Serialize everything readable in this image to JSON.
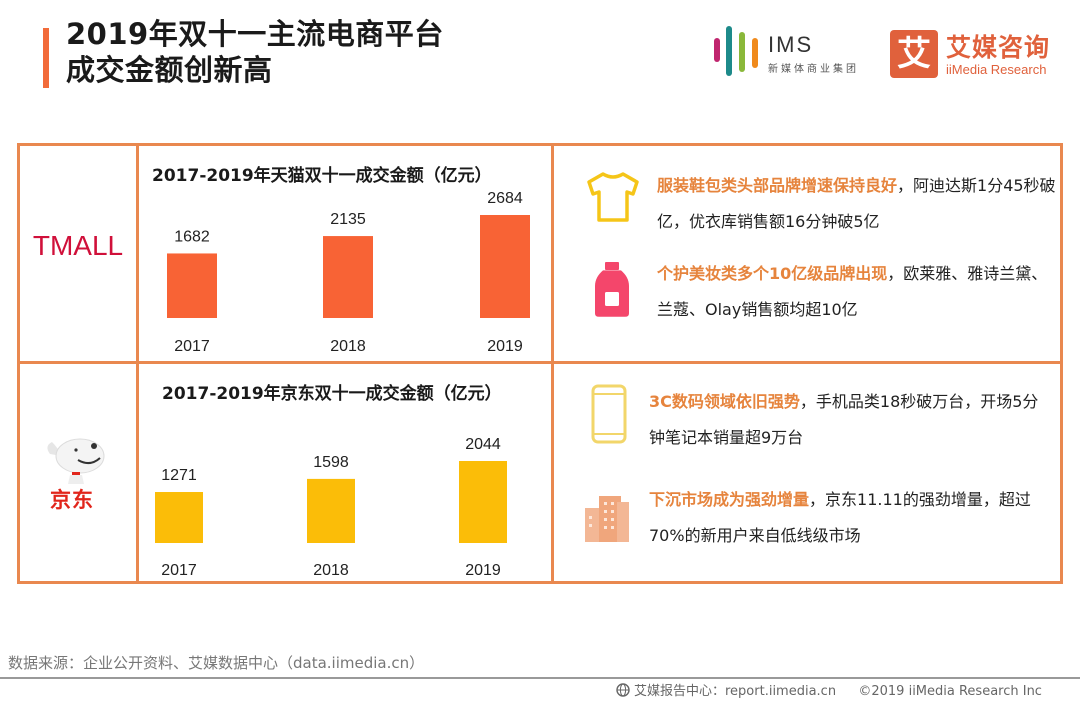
{
  "header": {
    "title_line1": "2019年双十一主流电商平台",
    "title_line2": "成交金额创新高",
    "accent_color": "#f26b3a"
  },
  "logos": {
    "ims": {
      "name": "IMS",
      "subtitle": "新媒体商业集团"
    },
    "iimedia": {
      "glyph": "艾",
      "name": "艾媒咨询",
      "english": "iiMedia Research",
      "color": "#e0613c"
    }
  },
  "brands": {
    "tmall": {
      "label": "TMALL",
      "color": "#d0103a"
    },
    "jd": {
      "label": "京东",
      "color": "#e1251b"
    }
  },
  "chart_data": [
    {
      "type": "bar",
      "title": "2017-2019年天猫双十一成交金额（亿元）",
      "categories": [
        "2017",
        "2018",
        "2019"
      ],
      "values": [
        1682,
        2135,
        2684
      ],
      "value_labels": [
        "1682",
        "2135",
        "2684"
      ],
      "unit": "亿元",
      "color": "#f86335",
      "xlabel": "",
      "ylabel": "",
      "grid": false,
      "axis_visible": false
    },
    {
      "type": "bar",
      "title": "2017-2019年京东双十一成交金额（亿元）",
      "categories": [
        "2017",
        "2018",
        "2019"
      ],
      "values": [
        1271,
        1598,
        2044
      ],
      "value_labels": [
        "1271",
        "1598",
        "2044"
      ],
      "unit": "亿元",
      "color": "#fbbd08",
      "xlabel": "",
      "ylabel": "",
      "grid": false,
      "axis_visible": false
    }
  ],
  "insights": [
    {
      "icon": "tshirt-icon",
      "icon_color": "#f5c518",
      "highlight": "服装鞋包类头部品牌增速保持良好",
      "rest": "，阿迪达斯1分45秒破亿，优衣库销售额16分钟破5亿"
    },
    {
      "icon": "bottle-icon",
      "icon_color": "#f4466b",
      "highlight": "个护美妆类多个10亿级品牌出现",
      "rest": "，欧莱雅、雅诗兰黛、兰蔻、Olay销售额均超10亿"
    },
    {
      "icon": "smartphone-icon",
      "icon_color": "#f2d66a",
      "highlight": "3C数码领域依旧强势",
      "rest": "，手机品类18秒破万台，开场5分钟笔记本销量超9万台"
    },
    {
      "icon": "buildings-icon",
      "icon_color": "#f3b795",
      "highlight": "下沉市场成为强劲增量",
      "rest": "，京东11.11的强劲增量，超过70%的新用户来自低线级市场"
    }
  ],
  "highlight_color": "#e6843d",
  "source": "数据来源：企业公开资料、艾媒数据中心（data.iimedia.cn）",
  "footer": {
    "report_center": "艾媒报告中心：report.iimedia.cn",
    "copyright": "©2019  iiMedia Research  Inc"
  }
}
